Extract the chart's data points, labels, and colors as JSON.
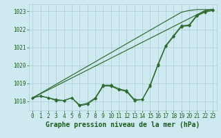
{
  "xlabel": "Graphe pression niveau de la mer (hPa)",
  "hours": [
    0,
    1,
    2,
    3,
    4,
    5,
    6,
    7,
    8,
    9,
    10,
    11,
    12,
    13,
    14,
    15,
    16,
    17,
    18,
    19,
    20,
    21,
    22,
    23
  ],
  "line_wavy1": [
    1018.2,
    1018.3,
    1018.2,
    1018.05,
    1018.05,
    1018.2,
    1017.75,
    1017.85,
    1018.15,
    1018.85,
    1018.85,
    1018.65,
    1018.55,
    1018.05,
    1018.1,
    1018.85,
    1020.0,
    1021.05,
    1021.6,
    1022.15,
    1022.2,
    1022.75,
    1022.95,
    1023.05
  ],
  "line_wavy2": [
    1018.2,
    1018.3,
    1018.2,
    1018.1,
    1018.05,
    1018.2,
    1017.8,
    1017.9,
    1018.2,
    1018.9,
    1018.9,
    1018.7,
    1018.6,
    1018.1,
    1018.1,
    1018.9,
    1020.05,
    1021.1,
    1021.65,
    1022.2,
    1022.25,
    1022.8,
    1023.0,
    1023.1
  ],
  "line_trend1": [
    1018.2,
    1018.45,
    1018.7,
    1018.95,
    1019.2,
    1019.45,
    1019.7,
    1019.95,
    1020.2,
    1020.45,
    1020.7,
    1020.95,
    1021.2,
    1021.45,
    1021.7,
    1021.95,
    1022.2,
    1022.45,
    1022.7,
    1022.95,
    1023.05,
    1023.1,
    1023.1,
    1023.1
  ],
  "line_trend2": [
    1018.2,
    1018.42,
    1018.64,
    1018.86,
    1019.08,
    1019.3,
    1019.52,
    1019.74,
    1019.96,
    1020.18,
    1020.4,
    1020.62,
    1020.84,
    1021.06,
    1021.28,
    1021.5,
    1021.72,
    1021.94,
    1022.16,
    1022.38,
    1022.6,
    1022.82,
    1023.04,
    1023.1
  ],
  "bg_color": "#ceeaf0",
  "line_color": "#2d6a2d",
  "grid_color": "#a8ccd4",
  "ylim": [
    1017.5,
    1023.4
  ],
  "yticks": [
    1018,
    1019,
    1020,
    1021,
    1022,
    1023
  ],
  "xticks": [
    0,
    1,
    2,
    3,
    4,
    5,
    6,
    7,
    8,
    9,
    10,
    11,
    12,
    13,
    14,
    15,
    16,
    17,
    18,
    19,
    20,
    21,
    22,
    23
  ],
  "label_color": "#1a5c1a",
  "label_fontsize": 7.0,
  "tick_fontsize": 5.5,
  "marker_size": 2.2,
  "linewidth": 0.85
}
